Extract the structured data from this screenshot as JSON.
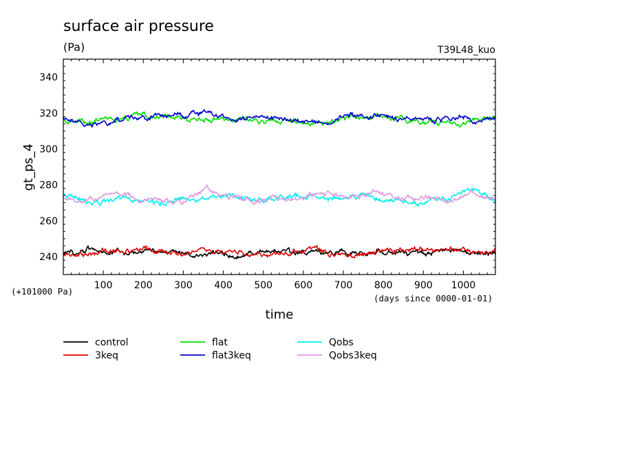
{
  "chart_data": {
    "type": "line",
    "title": "surface air pressure",
    "units": "(Pa)",
    "experiment": "T39L48_kuo",
    "xlabel": "time",
    "xlabel_note": "(days since 0000-01-01)",
    "ylabel": "gt_ps_4",
    "y_offset_label": "(+101000 Pa)",
    "xlim": [
      0,
      1080
    ],
    "ylim": [
      230,
      350
    ],
    "x_ticks": [
      "100",
      "200",
      "300",
      "400",
      "500",
      "600",
      "700",
      "800",
      "900",
      "1000"
    ],
    "y_ticks": [
      "240",
      "260",
      "280",
      "300",
      "320",
      "340"
    ],
    "legend_position": "bottom",
    "series": [
      {
        "name": "control",
        "color": "#000000",
        "x": [
          0,
          60,
          120,
          180,
          240,
          300,
          360,
          420,
          480,
          540,
          600,
          660,
          720,
          780,
          840,
          900,
          960,
          1020,
          1080
        ],
        "values": [
          242,
          244,
          242,
          243,
          242,
          243,
          241,
          241,
          242,
          243,
          242,
          242,
          242,
          243,
          242,
          242,
          243,
          242,
          242
        ]
      },
      {
        "name": "3keq",
        "color": "#e00000",
        "x": [
          0,
          60,
          120,
          180,
          240,
          300,
          360,
          420,
          480,
          540,
          600,
          660,
          720,
          780,
          840,
          900,
          960,
          1020,
          1080
        ],
        "values": [
          241,
          242,
          243,
          244,
          243,
          242,
          242,
          243,
          242,
          242,
          244,
          243,
          241,
          242,
          244,
          243,
          244,
          243,
          245
        ]
      },
      {
        "name": "flat",
        "color": "#00dd00",
        "x": [
          0,
          60,
          120,
          180,
          240,
          300,
          360,
          420,
          480,
          540,
          600,
          660,
          720,
          780,
          840,
          900,
          960,
          1020,
          1080
        ],
        "values": [
          316,
          315,
          316,
          318,
          319,
          317,
          316,
          316,
          316,
          316,
          314,
          315,
          317,
          318,
          316,
          315,
          314,
          315,
          318
        ]
      },
      {
        "name": "flat3keq",
        "color": "#0000cc",
        "x": [
          0,
          60,
          120,
          180,
          240,
          300,
          360,
          420,
          480,
          540,
          600,
          660,
          720,
          780,
          840,
          900,
          960,
          1020,
          1080
        ],
        "values": [
          317,
          313,
          315,
          318,
          318,
          319,
          320,
          318,
          317,
          317,
          314,
          315,
          318,
          319,
          317,
          317,
          317,
          316,
          317
        ]
      },
      {
        "name": "Qobs",
        "color": "#00eeee",
        "x": [
          0,
          60,
          120,
          180,
          240,
          300,
          360,
          420,
          480,
          540,
          600,
          660,
          720,
          780,
          840,
          900,
          960,
          1020,
          1080
        ],
        "values": [
          275,
          270,
          272,
          271,
          270,
          273,
          272,
          273,
          271,
          272,
          273,
          272,
          273,
          274,
          270,
          271,
          272,
          277,
          271
        ]
      },
      {
        "name": "Qobs3keq",
        "color": "#dd99dd",
        "x": [
          0,
          60,
          120,
          180,
          240,
          300,
          360,
          420,
          480,
          540,
          600,
          660,
          720,
          780,
          840,
          900,
          960,
          1020,
          1080
        ],
        "values": [
          272,
          271,
          275,
          272,
          271,
          271,
          278,
          273,
          271,
          272,
          274,
          275,
          272,
          276,
          272,
          272,
          272,
          274,
          271
        ]
      }
    ]
  }
}
